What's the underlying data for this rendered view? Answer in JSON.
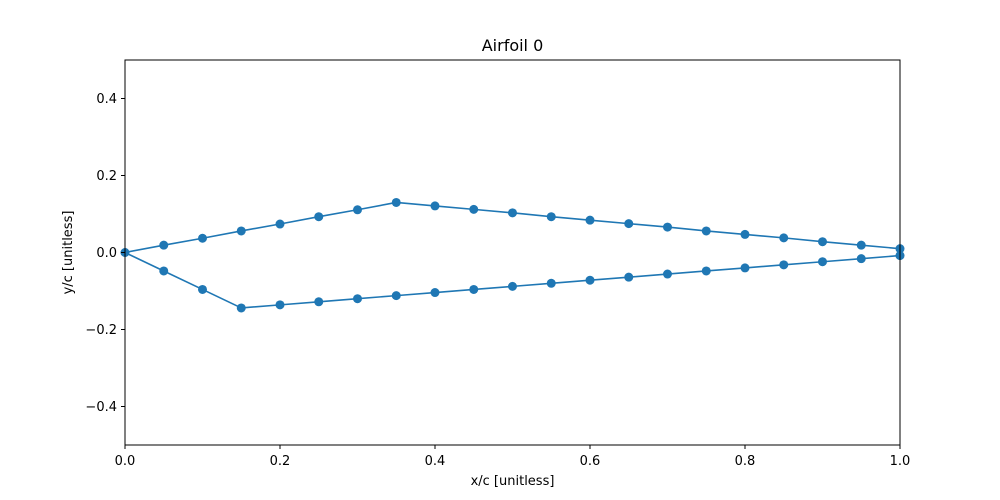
{
  "chart_data": {
    "type": "line",
    "title": "Airfoil 0",
    "xlabel": "x/c [unitless]",
    "ylabel": "y/c [unitless]",
    "xlim": [
      0,
      1
    ],
    "ylim": [
      -0.5,
      0.5
    ],
    "x_ticks": [
      0.0,
      0.2,
      0.4,
      0.6,
      0.8,
      1.0
    ],
    "x_tick_labels": [
      "0.0",
      "0.2",
      "0.4",
      "0.6",
      "0.8",
      "1.0"
    ],
    "y_ticks": [
      -0.4,
      -0.2,
      0.0,
      0.2,
      0.4
    ],
    "y_tick_labels": [
      "−0.4",
      "−0.2",
      "0.0",
      "0.2",
      "0.4"
    ],
    "grid": false,
    "color": "#1f77b4",
    "series": [
      {
        "x": [
          1.0,
          0.95,
          0.9,
          0.85,
          0.8,
          0.75,
          0.7,
          0.65,
          0.6,
          0.55,
          0.5,
          0.45,
          0.4,
          0.35,
          0.3,
          0.25,
          0.2,
          0.15,
          0.1,
          0.05,
          0.0,
          0.05,
          0.1,
          0.15,
          0.2,
          0.25,
          0.3,
          0.35,
          0.4,
          0.45,
          0.5,
          0.55,
          0.6,
          0.65,
          0.7,
          0.75,
          0.8,
          0.85,
          0.9,
          0.95,
          1.0
        ],
        "y": [
          0.01,
          0.019,
          0.028,
          0.038,
          0.047,
          0.056,
          0.066,
          0.075,
          0.084,
          0.093,
          0.103,
          0.112,
          0.121,
          0.13,
          0.111,
          0.093,
          0.074,
          0.056,
          0.037,
          0.019,
          0.0,
          -0.048,
          -0.096,
          -0.144,
          -0.136,
          -0.128,
          -0.12,
          -0.112,
          -0.104,
          -0.096,
          -0.088,
          -0.08,
          -0.072,
          -0.064,
          -0.056,
          -0.048,
          -0.04,
          -0.032,
          -0.024,
          -0.016,
          -0.008
        ]
      }
    ]
  }
}
